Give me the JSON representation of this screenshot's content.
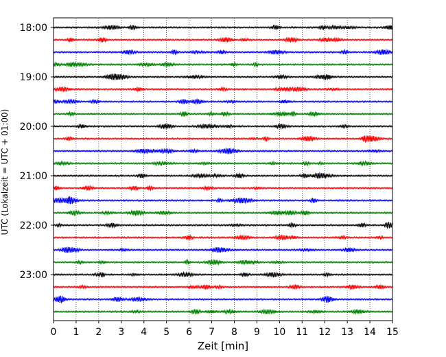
{
  "chart_data": {
    "type": "line",
    "subtype": "helicorder-seismogram",
    "title": "",
    "xlabel": "Zeit  [min]",
    "ylabel": "UTC (Lokalzeit = UTC + 01:00)",
    "xlim": [
      0,
      15
    ],
    "x_ticks": [
      0,
      1,
      2,
      3,
      4,
      5,
      6,
      7,
      8,
      9,
      10,
      11,
      12,
      13,
      14,
      15
    ],
    "x_tick_labels": [
      "0",
      "1",
      "2",
      "3",
      "4",
      "5",
      "6",
      "7",
      "8",
      "9",
      "10",
      "11",
      "12",
      "13",
      "14",
      "15"
    ],
    "y_tick_labels": [
      "18:00",
      "19:00",
      "20:00",
      "21:00",
      "22:00",
      "23:00"
    ],
    "grid": {
      "x": "dotted-vertical",
      "y": "none"
    },
    "trace_minutes": 15,
    "trace_color_cycle": [
      "#000000",
      "#ff0000",
      "#0000ff",
      "#008000"
    ],
    "traces": [
      {
        "start": "18:00"
      },
      {
        "start": "18:15"
      },
      {
        "start": "18:30"
      },
      {
        "start": "18:45"
      },
      {
        "start": "19:00"
      },
      {
        "start": "19:15"
      },
      {
        "start": "19:30"
      },
      {
        "start": "19:45"
      },
      {
        "start": "20:00"
      },
      {
        "start": "20:15"
      },
      {
        "start": "20:30"
      },
      {
        "start": "20:45"
      },
      {
        "start": "21:00"
      },
      {
        "start": "21:15"
      },
      {
        "start": "21:30"
      },
      {
        "start": "21:45"
      },
      {
        "start": "22:00"
      },
      {
        "start": "22:15"
      },
      {
        "start": "22:30"
      },
      {
        "start": "22:45"
      },
      {
        "start": "23:00"
      },
      {
        "start": "23:15"
      },
      {
        "start": "23:30"
      },
      {
        "start": "23:45"
      }
    ]
  }
}
